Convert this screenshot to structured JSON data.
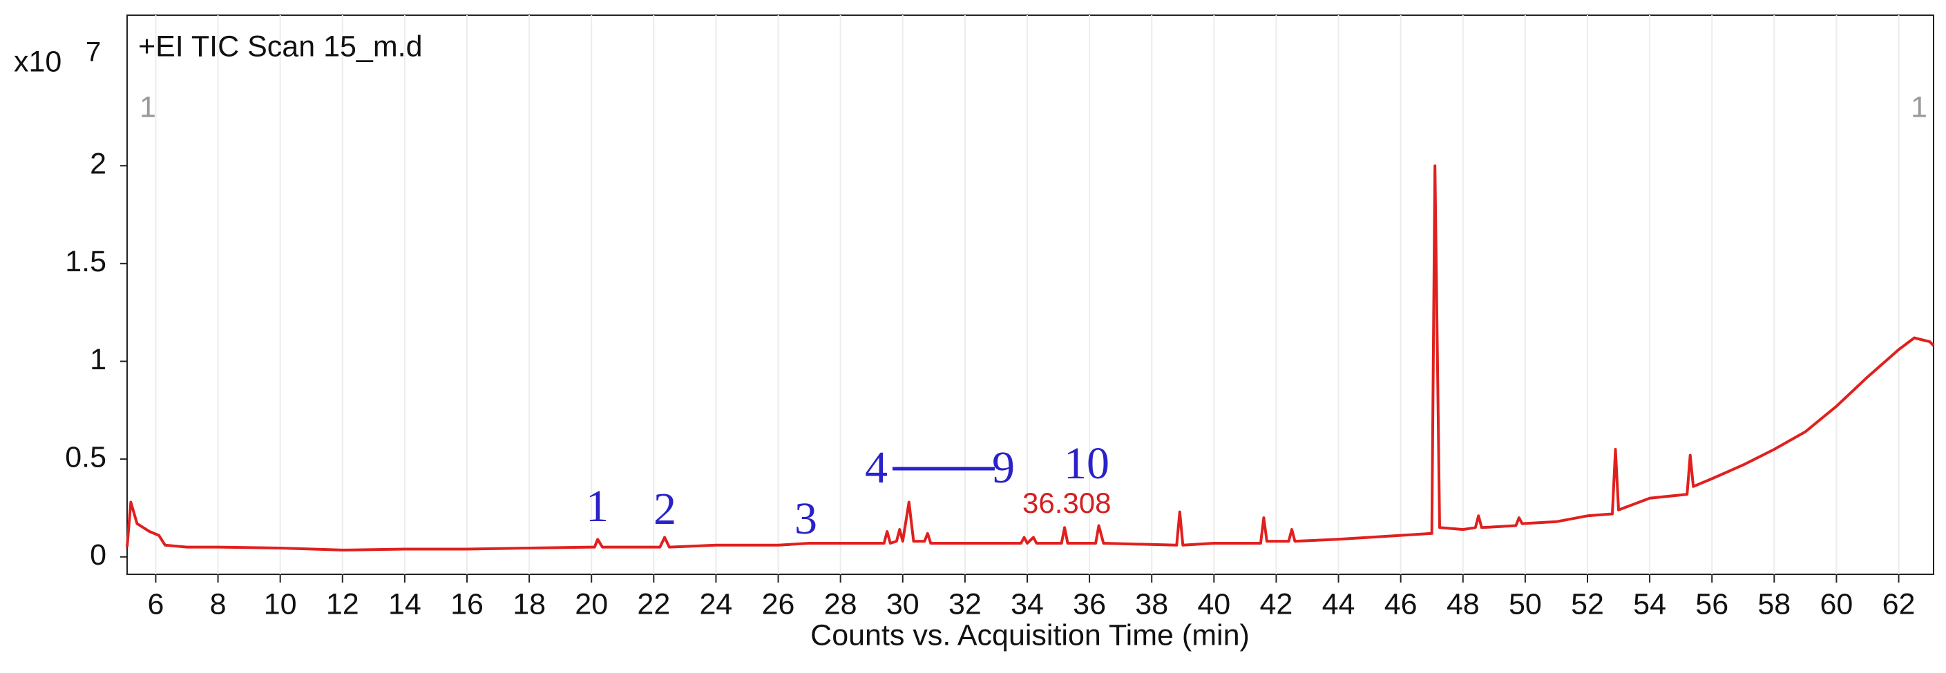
{
  "chart_data": {
    "type": "line",
    "title": "+EI TIC Scan 15_m.d",
    "y_multiplier": "x10",
    "y_exponent": "7",
    "x_label": "Counts vs. Acquisition Time (min)",
    "trace_markers": [
      "1",
      "1"
    ],
    "peak_labels": [
      "1",
      "2",
      "3",
      "4",
      "9",
      "10"
    ],
    "peak_time": 36.308,
    "color": "#e0201e",
    "x": [
      5.08,
      5.2,
      5.4,
      5.8,
      6.1,
      6.3,
      7,
      8,
      10,
      12,
      14,
      16,
      18,
      20,
      20.1,
      20.2,
      20.35,
      21,
      22.2,
      22.35,
      22.5,
      24,
      26,
      27,
      28,
      29.4,
      29.5,
      29.6,
      29.8,
      29.9,
      30.0,
      30.2,
      30.35,
      30.7,
      30.8,
      30.9,
      32,
      33.8,
      33.9,
      34.0,
      34.2,
      34.3,
      35.1,
      35.2,
      35.3,
      36.2,
      36.3,
      36.45,
      38.8,
      38.9,
      39.0,
      40,
      41.5,
      41.6,
      41.7,
      42.4,
      42.5,
      42.6,
      44,
      46,
      47.0,
      47.1,
      47.25,
      48,
      48.4,
      48.5,
      48.6,
      49.7,
      49.8,
      49.9,
      51,
      52,
      52.8,
      52.9,
      53.0,
      54,
      55.2,
      55.3,
      55.4,
      56,
      57,
      58,
      59,
      60,
      61,
      62,
      62.5,
      63,
      63.12
    ],
    "values": [
      0.05,
      0.28,
      0.17,
      0.13,
      0.11,
      0.06,
      0.05,
      0.05,
      0.045,
      0.035,
      0.04,
      0.04,
      0.045,
      0.05,
      0.05,
      0.09,
      0.05,
      0.05,
      0.05,
      0.1,
      0.05,
      0.06,
      0.06,
      0.07,
      0.07,
      0.07,
      0.13,
      0.07,
      0.08,
      0.14,
      0.08,
      0.28,
      0.08,
      0.08,
      0.12,
      0.07,
      0.07,
      0.07,
      0.1,
      0.07,
      0.1,
      0.07,
      0.07,
      0.15,
      0.07,
      0.07,
      0.16,
      0.07,
      0.06,
      0.23,
      0.06,
      0.07,
      0.07,
      0.2,
      0.08,
      0.08,
      0.14,
      0.08,
      0.09,
      0.11,
      0.12,
      2.0,
      0.15,
      0.14,
      0.15,
      0.21,
      0.15,
      0.16,
      0.2,
      0.17,
      0.18,
      0.21,
      0.22,
      0.55,
      0.24,
      0.3,
      0.32,
      0.52,
      0.36,
      0.4,
      0.47,
      0.55,
      0.64,
      0.77,
      0.92,
      1.06,
      1.12,
      1.1,
      1.08
    ],
    "xlim": [
      5.08,
      63.12
    ],
    "ylim": [
      -0.089,
      2.77
    ],
    "xticks": [
      6,
      8,
      10,
      12,
      14,
      16,
      18,
      20,
      22,
      24,
      26,
      28,
      30,
      32,
      34,
      36,
      38,
      40,
      42,
      44,
      46,
      48,
      50,
      52,
      54,
      56,
      58,
      60,
      62
    ],
    "yticks": [
      0,
      0.5,
      1,
      1.5,
      2
    ],
    "grid": true
  }
}
